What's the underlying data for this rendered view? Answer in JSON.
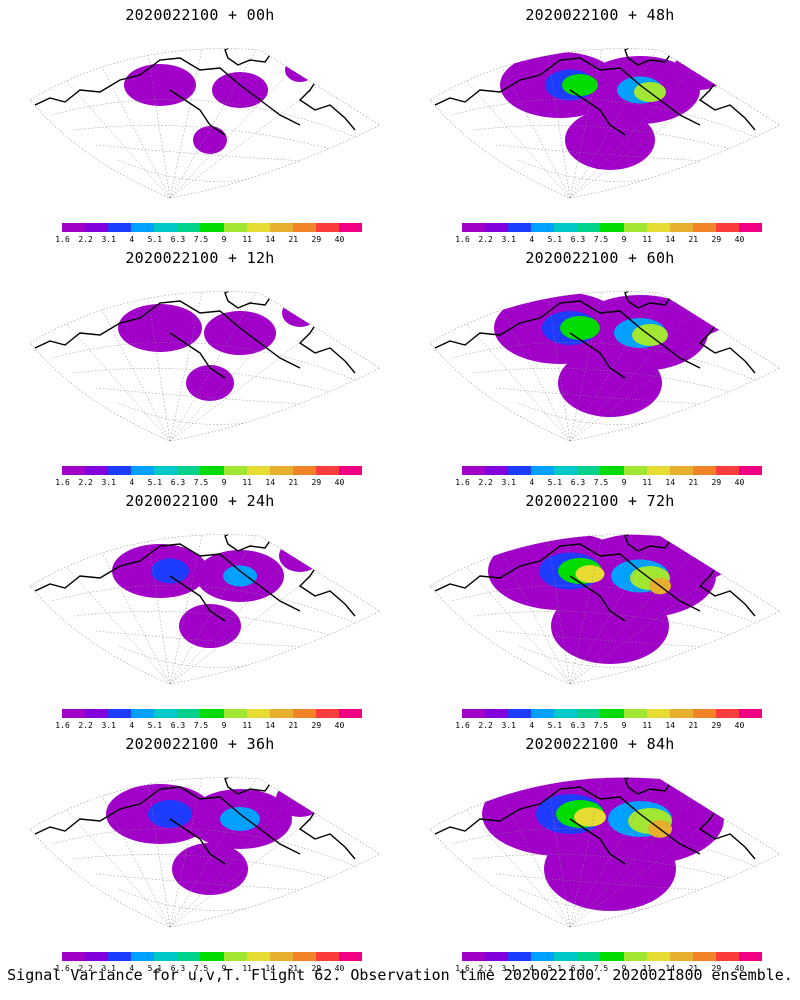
{
  "panels": [
    {
      "title": "2020022100 + 00h"
    },
    {
      "title": "2020022100 + 48h"
    },
    {
      "title": "2020022100 + 12h"
    },
    {
      "title": "2020022100 + 60h"
    },
    {
      "title": "2020022100 + 24h"
    },
    {
      "title": "2020022100 + 72h"
    },
    {
      "title": "2020022100 + 36h"
    },
    {
      "title": "2020022100 + 84h"
    }
  ],
  "colorbar": {
    "colors": [
      "#a000c8",
      "#8200dc",
      "#1e3cff",
      "#00a0ff",
      "#00c8c8",
      "#00d28c",
      "#00dc00",
      "#a0e632",
      "#e6dc32",
      "#e6af2d",
      "#f08228",
      "#fa3c3c",
      "#f00082"
    ],
    "ticks": [
      "1.6",
      "2.2",
      "3.1",
      "4",
      "5.1",
      "6.3",
      "7.5",
      "9",
      "11",
      "14",
      "21",
      "29",
      "40"
    ]
  },
  "footer": "Signal Variance for u,v,T. Flight 62. Observation time 2020022100. 2020021800 ensemble."
}
